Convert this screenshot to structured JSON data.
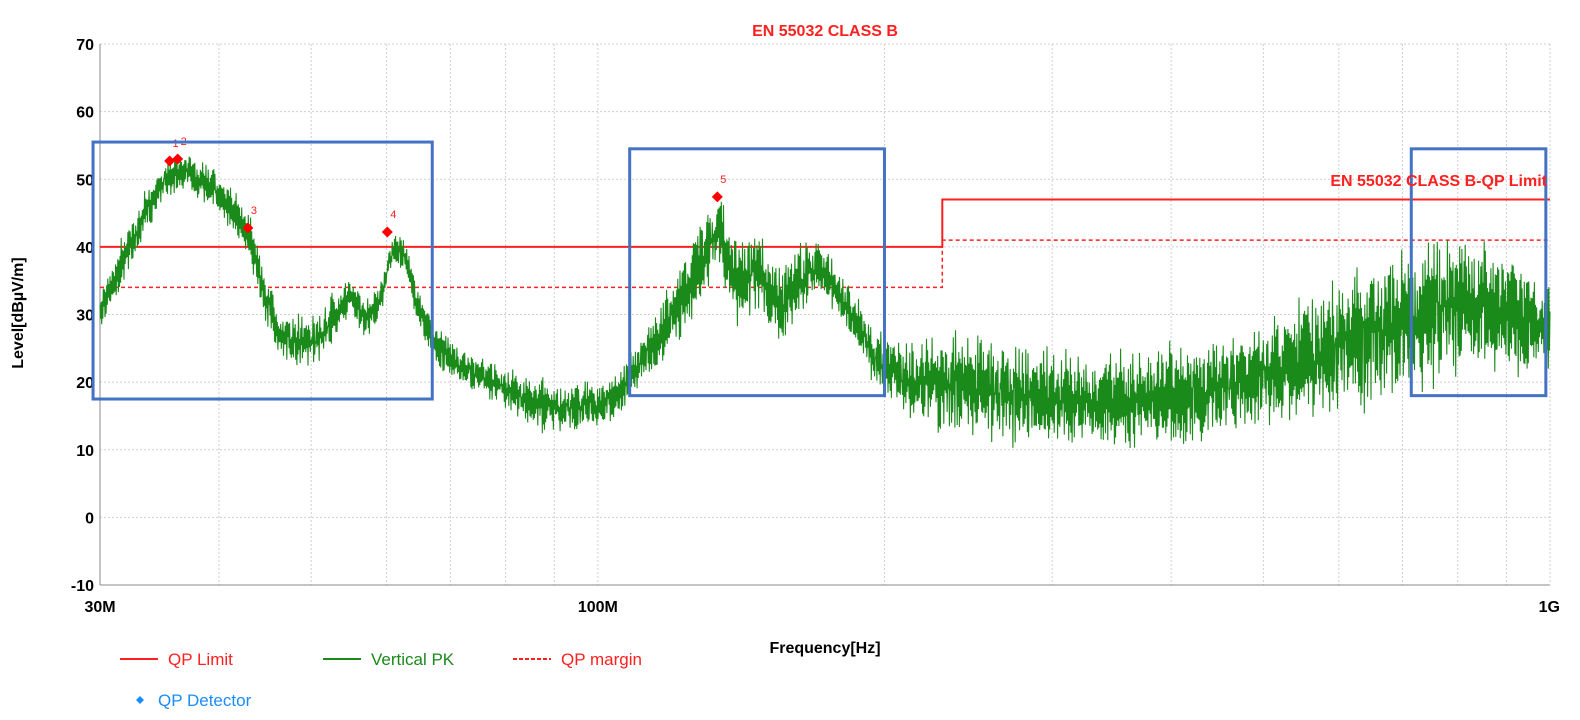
{
  "chart_data": {
    "type": "line",
    "title": "EN 55032 CLASS B",
    "xlabel": "Frequency[Hz]",
    "ylabel": "Level[dBµV/m]",
    "x_scale": "log",
    "xlim": [
      30000000,
      1000000000
    ],
    "ylim": [
      -10,
      70
    ],
    "grid": true,
    "x_ticks": [
      {
        "value": 30000000,
        "label": "30M"
      },
      {
        "value": 100000000,
        "label": "100M"
      },
      {
        "value": 1000000000,
        "label": "1G"
      }
    ],
    "y_ticks": [
      {
        "value": 70,
        "label": "70"
      },
      {
        "value": 60,
        "label": "60"
      },
      {
        "value": 50,
        "label": "50"
      },
      {
        "value": 40,
        "label": "40"
      },
      {
        "value": 30,
        "label": "30"
      },
      {
        "value": 20,
        "label": "20"
      },
      {
        "value": 10,
        "label": "10"
      },
      {
        "value": 0,
        "label": "0"
      },
      {
        "value": -10,
        "label": "-10"
      }
    ],
    "limit_label": "EN 55032 CLASS B-QP Limit",
    "series": [
      {
        "name": "QP Limit",
        "color": "#ff2020",
        "style": "solid",
        "points": [
          [
            30000000,
            40
          ],
          [
            230000000,
            40
          ],
          [
            230000000,
            47
          ],
          [
            1000000000,
            47
          ]
        ]
      },
      {
        "name": "QP margin",
        "color": "#ff2020",
        "style": "dashed",
        "points": [
          [
            30000000,
            34
          ],
          [
            230000000,
            34
          ],
          [
            230000000,
            41
          ],
          [
            1000000000,
            41
          ]
        ]
      },
      {
        "name": "Vertical PK",
        "color": "#1a8a1a",
        "style": "noisy",
        "envelope": [
          [
            30000000,
            31,
            4
          ],
          [
            31500000,
            37,
            5
          ],
          [
            33000000,
            43,
            5
          ],
          [
            35000000,
            50,
            4
          ],
          [
            37000000,
            51,
            4
          ],
          [
            39000000,
            49,
            4
          ],
          [
            41000000,
            46,
            4
          ],
          [
            43000000,
            42,
            4
          ],
          [
            44000000,
            36,
            5
          ],
          [
            46000000,
            28,
            5
          ],
          [
            48000000,
            26,
            5
          ],
          [
            51000000,
            26,
            5
          ],
          [
            53000000,
            30,
            5
          ],
          [
            55000000,
            33,
            3
          ],
          [
            57000000,
            29,
            4
          ],
          [
            59000000,
            32,
            4
          ],
          [
            61000000,
            40,
            3
          ],
          [
            63000000,
            38,
            4
          ],
          [
            65000000,
            30,
            4
          ],
          [
            68000000,
            25,
            4
          ],
          [
            72000000,
            22,
            4
          ],
          [
            78000000,
            20,
            4
          ],
          [
            85000000,
            17,
            5
          ],
          [
            92000000,
            16,
            5
          ],
          [
            100000000,
            17,
            5
          ],
          [
            105000000,
            18,
            4
          ],
          [
            112000000,
            24,
            5
          ],
          [
            120000000,
            30,
            7
          ],
          [
            128000000,
            37,
            8
          ],
          [
            134000000,
            43,
            7
          ],
          [
            140000000,
            34,
            8
          ],
          [
            146000000,
            37,
            8
          ],
          [
            155000000,
            31,
            8
          ],
          [
            165000000,
            36,
            7
          ],
          [
            172000000,
            37,
            5
          ],
          [
            182000000,
            31,
            5
          ],
          [
            195000000,
            24,
            6
          ],
          [
            210000000,
            20,
            8
          ],
          [
            240000000,
            20,
            10
          ],
          [
            280000000,
            18,
            10
          ],
          [
            330000000,
            17,
            9
          ],
          [
            400000000,
            18,
            10
          ],
          [
            480000000,
            20,
            10
          ],
          [
            560000000,
            24,
            12
          ],
          [
            640000000,
            27,
            14
          ],
          [
            720000000,
            30,
            15
          ],
          [
            800000000,
            32,
            14
          ],
          [
            880000000,
            30,
            12
          ],
          [
            950000000,
            29,
            10
          ],
          [
            1000000000,
            28,
            8
          ]
        ]
      }
    ],
    "markers": [
      {
        "label": "1",
        "x": 35500000,
        "y": 52.7
      },
      {
        "label": "2",
        "x": 36200000,
        "y": 53.0
      },
      {
        "label": "3",
        "x": 42900000,
        "y": 42.8
      },
      {
        "label": "4",
        "x": 60100000,
        "y": 42.2
      },
      {
        "label": "5",
        "x": 133500000,
        "y": 47.4
      }
    ],
    "highlight_boxes": [
      {
        "x0": 29500000,
        "x1": 67000000,
        "y0": 17.5,
        "y1": 55.5
      },
      {
        "x0": 108000000,
        "x1": 200000000,
        "y0": 18,
        "y1": 54.5
      },
      {
        "x0": 715000000,
        "x1": 990000000,
        "y0": 18,
        "y1": 54.5
      }
    ],
    "legend": {
      "placement": "bottom-left",
      "items": [
        {
          "label": "QP Limit",
          "color": "#ff2020",
          "style": "solid"
        },
        {
          "label": "Vertical PK",
          "color": "#1a8a1a",
          "style": "solid"
        },
        {
          "label": "QP margin",
          "color": "#ff2020",
          "style": "dashed"
        },
        {
          "label": "QP Detector",
          "color": "#1a8cff",
          "style": "diamond"
        }
      ]
    }
  }
}
